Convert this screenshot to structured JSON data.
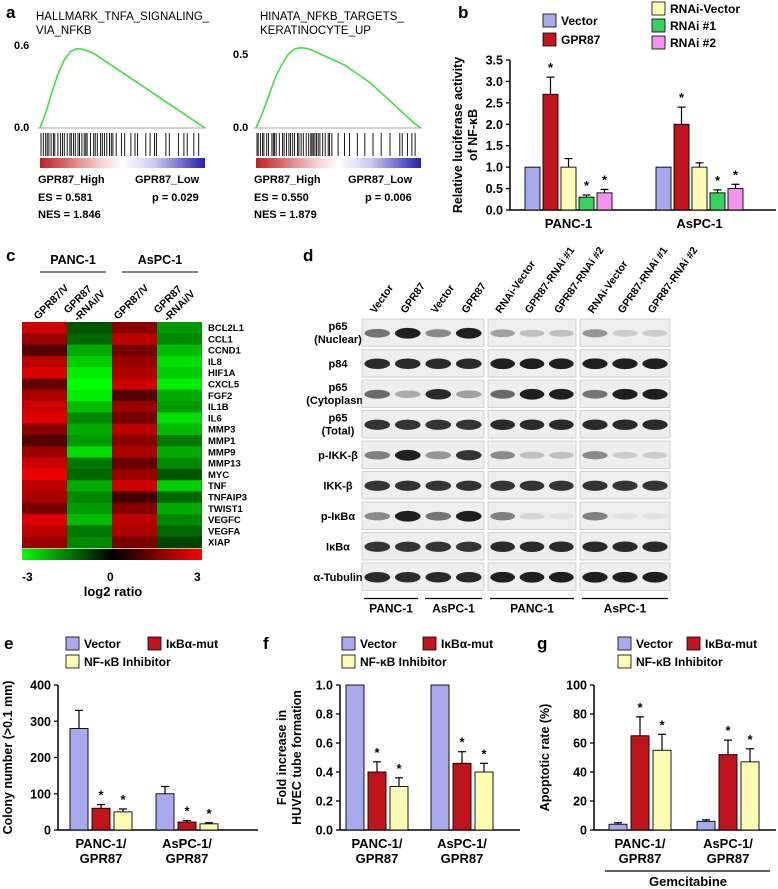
{
  "colors": {
    "vector": "#a9a9ee",
    "gpr87": "#c0141c",
    "third": "#fcfcb4",
    "rnai1": "#36d15e",
    "rnai2": "#f591ee",
    "gsea_curve": "#3ee03e",
    "heat_red": "#ff0000",
    "heat_black": "#000000",
    "heat_green": "#00ff00"
  },
  "panel_a": {
    "label": "a",
    "plots": [
      {
        "title_line1": "HALLMARK_TNFA_SIGNALING_",
        "title_line2": "VIA_NFKB",
        "ytick_top": "0.6",
        "ytick_zero": "0.0",
        "left_label": "GPR87_High",
        "right_label": "GPR87_Low",
        "es": "ES = 0.581",
        "p": "p = 0.029",
        "nes": "NES = 1.846",
        "curve": [
          0,
          0.12,
          0.27,
          0.4,
          0.5,
          0.56,
          0.58,
          0.575,
          0.56,
          0.54,
          0.51,
          0.48,
          0.45,
          0.42,
          0.39,
          0.36,
          0.33,
          0.3,
          0.27,
          0.24,
          0.21,
          0.18,
          0.15,
          0.12,
          0.09,
          0.06,
          0.03,
          0
        ]
      },
      {
        "title_line1": "HINATA_NFKB_TARGETS_",
        "title_line2": "KERATINOCYTE_UP",
        "ytick_top": "0.5",
        "ytick_zero": "0.0",
        "left_label": "GPR87_High",
        "right_label": "GPR87_Low",
        "es": "ES = 0.550",
        "p": "p = 0.006",
        "nes": "NES = 1.879",
        "curve": [
          0,
          0.1,
          0.22,
          0.34,
          0.43,
          0.5,
          0.54,
          0.55,
          0.545,
          0.53,
          0.51,
          0.49,
          0.47,
          0.45,
          0.43,
          0.4,
          0.37,
          0.34,
          0.31,
          0.27,
          0.23,
          0.19,
          0.15,
          0.11,
          0.07,
          0.03,
          0
        ]
      }
    ]
  },
  "panel_b": {
    "label": "b",
    "legend": [
      "Vector",
      "GPR87",
      "RNAi-Vector",
      "RNAi #1",
      "RNAi #2"
    ],
    "chart_data": {
      "type": "bar",
      "categories": [
        "PANC-1",
        "AsPC-1"
      ],
      "series": [
        {
          "name": "Vector",
          "values": [
            1.0,
            1.0
          ],
          "errors": [
            0,
            0
          ],
          "sig": [
            "",
            ""
          ]
        },
        {
          "name": "GPR87",
          "values": [
            2.7,
            2.0
          ],
          "errors": [
            0.4,
            0.4
          ],
          "sig": [
            "*",
            "*"
          ]
        },
        {
          "name": "RNAi-Vector",
          "values": [
            1.0,
            1.0
          ],
          "errors": [
            0.2,
            0.1
          ],
          "sig": [
            "",
            ""
          ]
        },
        {
          "name": "RNAi #1",
          "values": [
            0.3,
            0.4
          ],
          "errors": [
            0.05,
            0.07
          ],
          "sig": [
            "*",
            "*"
          ]
        },
        {
          "name": "RNAi #2",
          "values": [
            0.4,
            0.5
          ],
          "errors": [
            0.08,
            0.1
          ],
          "sig": [
            "*",
            "*"
          ]
        }
      ],
      "ylabel_line1": "Relative luciferase activity",
      "ylabel_line2": "of NF-κB",
      "ylim": [
        0,
        3.5
      ],
      "yticks": [
        "0.0",
        "0.5",
        "1.0",
        "1.5",
        "2.0",
        "2.5",
        "3.0",
        "3.5"
      ]
    }
  },
  "panel_c": {
    "label": "c",
    "group1": "PANC-1",
    "group2": "AsPC-1",
    "columns": [
      "GPR87/V",
      "GPR87",
      "-RNAi/V",
      "GPR87/V",
      "GPR87",
      "-RNAi/V"
    ],
    "genes": [
      "BCL2L1",
      "CCL1",
      "CCND1",
      "IL8",
      "HIF1A",
      "CXCL5",
      "FGF2",
      "IL1B",
      "IL6",
      "MMP3",
      "MMP1",
      "MMP9",
      "MMP13",
      "MYC",
      "TNF",
      "TNFAIP3",
      "TWIST1",
      "VEGFC",
      "VEGFA",
      "XIAP"
    ],
    "chart_data": {
      "type": "heatmap",
      "columns": [
        "PANC-1 GPR87/V",
        "PANC-1 GPR87-RNAi/V",
        "AsPC-1 GPR87/V",
        "AsPC-1 GPR87-RNAi/V"
      ],
      "values": [
        [
          2.4,
          -1.0,
          1.6,
          -1.8
        ],
        [
          1.8,
          -1.2,
          2.2,
          -1.6
        ],
        [
          1.0,
          -2.0,
          1.4,
          -2.2
        ],
        [
          2.2,
          -2.4,
          1.8,
          -2.6
        ],
        [
          2.6,
          -2.8,
          2.0,
          -2.4
        ],
        [
          1.2,
          -3.0,
          2.4,
          -2.8
        ],
        [
          2.0,
          -2.8,
          1.0,
          -2.0
        ],
        [
          2.4,
          -2.2,
          1.8,
          -1.8
        ],
        [
          2.6,
          -1.6,
          1.4,
          -2.6
        ],
        [
          1.6,
          -2.0,
          2.2,
          -2.2
        ],
        [
          1.0,
          -1.8,
          1.6,
          -1.4
        ],
        [
          1.8,
          -2.6,
          2.0,
          -2.0
        ],
        [
          2.4,
          -1.4,
          1.2,
          -1.6
        ],
        [
          2.8,
          -1.2,
          1.8,
          -1.0
        ],
        [
          2.2,
          -2.0,
          2.4,
          -2.4
        ],
        [
          2.0,
          -1.6,
          0.8,
          -1.2
        ],
        [
          1.4,
          -1.8,
          1.6,
          -2.0
        ],
        [
          2.6,
          -2.2,
          2.2,
          -1.6
        ],
        [
          2.2,
          -1.4,
          2.0,
          -1.2
        ],
        [
          1.8,
          -1.6,
          1.4,
          -0.8
        ]
      ],
      "scale_min": "-3",
      "scale_mid": "0",
      "scale_max": "3",
      "scale_label": "log2 ratio"
    }
  },
  "panel_d": {
    "label": "d",
    "lane_labels_1": [
      "Vector",
      "GPR87",
      "Vector",
      "GPR87"
    ],
    "lane_labels_2": [
      "RNAi-Vector",
      "GPR87-RNAi #1",
      "GPR87-RNAi #2"
    ],
    "lane_labels_3": [
      "RNAi-Vector",
      "GPR87-RNAi #1",
      "GPR87-RNAi #2"
    ],
    "rows": [
      {
        "l1": "p65",
        "l2": "(Nuclear)"
      },
      {
        "l1": "p84",
        "l2": ""
      },
      {
        "l1": "p65",
        "l2": "(Cytoplasm)"
      },
      {
        "l1": "p65",
        "l2": "(Total)"
      },
      {
        "l1": "p-IKK-β",
        "l2": ""
      },
      {
        "l1": "IKK-β",
        "l2": ""
      },
      {
        "l1": "p-IκBα",
        "l2": ""
      },
      {
        "l1": "IκBα",
        "l2": ""
      },
      {
        "l1": "α-Tubulin",
        "l2": ""
      }
    ],
    "bottom_groups": [
      "PANC-1",
      "AsPC-1",
      "PANC-1",
      "AsPC-1"
    ],
    "band_intensity": [
      [
        0.55,
        0.95,
        0.45,
        0.95,
        0.35,
        0.2,
        0.2,
        0.4,
        0.15,
        0.15
      ],
      [
        0.9,
        0.9,
        0.9,
        0.9,
        0.95,
        0.95,
        0.95,
        0.95,
        0.95,
        0.95
      ],
      [
        0.6,
        0.3,
        0.9,
        0.35,
        0.6,
        0.95,
        0.95,
        0.55,
        0.95,
        0.95
      ],
      [
        0.85,
        0.85,
        0.85,
        0.85,
        0.9,
        0.9,
        0.9,
        0.9,
        0.9,
        0.9
      ],
      [
        0.5,
        0.95,
        0.4,
        0.85,
        0.45,
        0.2,
        0.2,
        0.45,
        0.15,
        0.15
      ],
      [
        0.85,
        0.85,
        0.85,
        0.85,
        0.85,
        0.85,
        0.85,
        0.85,
        0.85,
        0.85
      ],
      [
        0.45,
        0.95,
        0.55,
        0.95,
        0.5,
        0.1,
        0.05,
        0.5,
        0.05,
        0.05
      ],
      [
        0.85,
        0.85,
        0.85,
        0.85,
        0.9,
        0.9,
        0.9,
        0.9,
        0.9,
        0.9
      ],
      [
        0.9,
        0.9,
        0.9,
        0.9,
        0.95,
        0.95,
        0.95,
        0.95,
        0.95,
        0.95
      ]
    ]
  },
  "panel_e": {
    "label": "e",
    "legend": [
      "Vector",
      "IκBα-mut",
      "NF-κB Inhibitor"
    ],
    "chart_data": {
      "type": "bar",
      "categories": [
        [
          "PANC-1/",
          "GPR87"
        ],
        [
          "AsPC-1/",
          "GPR87"
        ]
      ],
      "series": [
        {
          "name": "Vector",
          "values": [
            280,
            100
          ],
          "errors": [
            50,
            20
          ],
          "sig": [
            "",
            ""
          ]
        },
        {
          "name": "IκBα-mut",
          "values": [
            60,
            22
          ],
          "errors": [
            10,
            4
          ],
          "sig": [
            "*",
            "*"
          ]
        },
        {
          "name": "NF-κB Inhibitor",
          "values": [
            50,
            17
          ],
          "errors": [
            8,
            3
          ],
          "sig": [
            "*",
            "*"
          ]
        }
      ],
      "ylabel_line1": "Colony number (>0.1 mm)",
      "ylabel_line2": "",
      "ylim": [
        0,
        400
      ],
      "yticks": [
        "0",
        "100",
        "200",
        "300",
        "400"
      ]
    }
  },
  "panel_f": {
    "label": "f",
    "legend": [
      "Vector",
      "IκBα-mut",
      "NF-κB Inhibitor"
    ],
    "chart_data": {
      "type": "bar",
      "categories": [
        [
          "PANC-1/",
          "GPR87"
        ],
        [
          "AsPC-1/",
          "GPR87"
        ]
      ],
      "series": [
        {
          "name": "Vector",
          "values": [
            1.0,
            1.0
          ],
          "errors": [
            0,
            0
          ],
          "sig": [
            "",
            ""
          ]
        },
        {
          "name": "IκBα-mut",
          "values": [
            0.4,
            0.46
          ],
          "errors": [
            0.07,
            0.08
          ],
          "sig": [
            "*",
            "*"
          ]
        },
        {
          "name": "NF-κB Inhibitor",
          "values": [
            0.3,
            0.4
          ],
          "errors": [
            0.06,
            0.06
          ],
          "sig": [
            "*",
            "*"
          ]
        }
      ],
      "ylabel_line1": "Fold increase in",
      "ylabel_line2": "HUVEC tube formation",
      "ylim": [
        0,
        1.0
      ],
      "yticks": [
        "0.0",
        "0.2",
        "0.4",
        "0.6",
        "0.8",
        "1.0"
      ]
    }
  },
  "panel_g": {
    "label": "g",
    "legend": [
      "Vector",
      "IκBα-mut",
      "NF-κB Inhibitor"
    ],
    "group_label": "Gemcitabine",
    "chart_data": {
      "type": "bar",
      "categories": [
        [
          "PANC-1/",
          "GPR87"
        ],
        [
          "AsPC-1/",
          "GPR87"
        ]
      ],
      "series": [
        {
          "name": "Vector",
          "values": [
            4,
            6
          ],
          "errors": [
            1,
            1
          ],
          "sig": [
            "",
            ""
          ]
        },
        {
          "name": "IκBα-mut",
          "values": [
            65,
            52
          ],
          "errors": [
            13,
            10
          ],
          "sig": [
            "*",
            "*"
          ]
        },
        {
          "name": "NF-κB Inhibitor",
          "values": [
            55,
            47
          ],
          "errors": [
            11,
            9
          ],
          "sig": [
            "*",
            "*"
          ]
        }
      ],
      "ylabel_line1": "Apoptotic rate (%)",
      "ylabel_line2": "",
      "ylim": [
        0,
        100
      ],
      "yticks": [
        "0",
        "20",
        "40",
        "60",
        "80",
        "100"
      ]
    }
  }
}
